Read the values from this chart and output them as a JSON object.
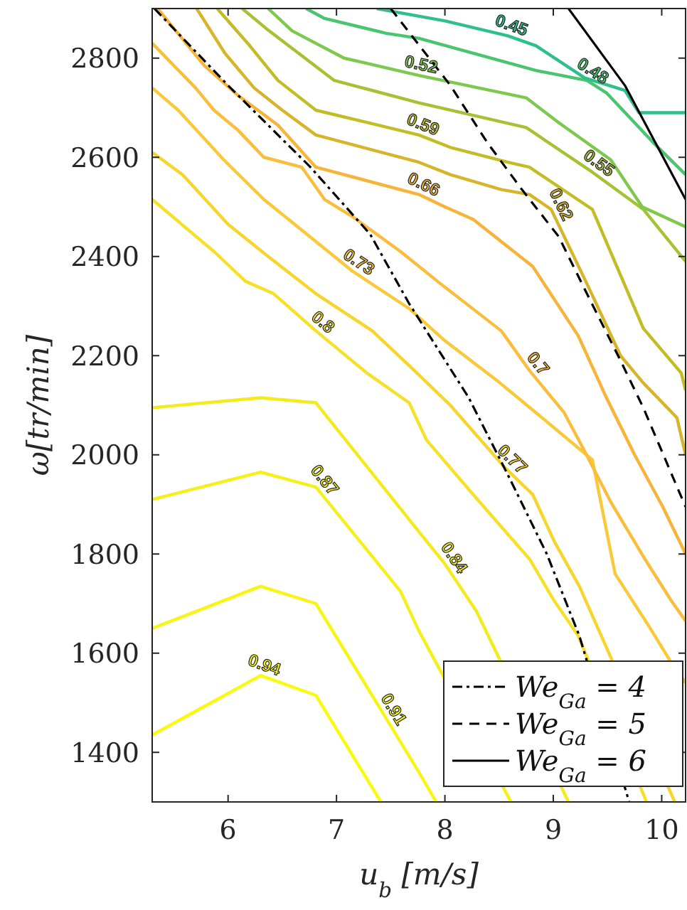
{
  "chart_data": {
    "type": "line",
    "xlabel": "u$_{b}$[m/s]",
    "ylabel": "ω[tr/min]",
    "xlim": [
      5.3,
      10.22
    ],
    "ylim": [
      1300,
      2900
    ],
    "xticks": [
      6,
      7,
      8,
      9,
      10
    ],
    "yticks": [
      1400,
      1600,
      1800,
      2000,
      2200,
      2400,
      2600,
      2800
    ],
    "grid": false,
    "legend": "bottom right",
    "series": [
      {
        "name": "0.94",
        "color": "#f9fb0e",
        "x": [
          5.3,
          6.3,
          6.81,
          7.41
        ],
        "values": [
          1435,
          1555,
          1515,
          1300
        ]
      },
      {
        "name": "0.91",
        "color": "#f8f515",
        "x": [
          5.3,
          6.3,
          6.81,
          7.44,
          7.76,
          7.92
        ],
        "values": [
          1650,
          1735,
          1700,
          1475,
          1360,
          1300
        ]
      },
      {
        "name": "0.87",
        "color": "#f5f01a",
        "x": [
          5.3,
          6.3,
          6.81,
          7.59,
          7.76,
          8.61
        ],
        "values": [
          1910,
          1965,
          1935,
          1725,
          1645,
          1300
        ]
      },
      {
        "name": "0.84",
        "color": "#f4ea1d",
        "x": [
          5.3,
          6.3,
          6.81,
          7.76,
          8.0,
          8.29,
          9.14
        ],
        "values": [
          2095,
          2115,
          2105,
          1845,
          1780,
          1685,
          1300
        ]
      },
      {
        "name": "0.8",
        "color": "#f6e128",
        "x": [
          5.3,
          5.87,
          6.16,
          6.42,
          6.81,
          7.28,
          7.67,
          7.83,
          8.26,
          8.78,
          9.01,
          9.23,
          9.86
        ],
        "values": [
          2515,
          2410,
          2350,
          2325,
          2250,
          2165,
          2105,
          2030,
          1920,
          1790,
          1705,
          1635,
          1300
        ]
      },
      {
        "name": "0.77",
        "color": "#f7d52c",
        "x": [
          5.3,
          5.58,
          6.0,
          6.37,
          6.81,
          7.33,
          7.67,
          8.05,
          8.55,
          8.81,
          9.01,
          9.24,
          10.12
        ],
        "values": [
          2610,
          2565,
          2465,
          2400,
          2325,
          2250,
          2180,
          2100,
          1975,
          1920,
          1825,
          1735,
          1300
        ]
      },
      {
        "name": "0.73",
        "color": "#fac93a",
        "x": [
          5.3,
          5.54,
          5.96,
          6.33,
          6.81,
          7.15,
          7.67,
          8.0,
          8.48,
          8.84,
          9.36,
          9.57,
          9.88,
          10.09,
          10.22
        ],
        "values": [
          2740,
          2695,
          2595,
          2515,
          2430,
          2370,
          2295,
          2230,
          2150,
          2085,
          1990,
          1760,
          1655,
          1580,
          1540
        ]
      },
      {
        "name": "0.7",
        "color": "#fbbd3c",
        "x": [
          5.3,
          5.7,
          5.87,
          6.09,
          6.33,
          6.68,
          6.89,
          7.15,
          7.59,
          7.96,
          8.52,
          8.78,
          9.1,
          9.27,
          9.53,
          9.83,
          10.09,
          10.22
        ],
        "values": [
          2830,
          2740,
          2695,
          2655,
          2600,
          2580,
          2515,
          2480,
          2410,
          2345,
          2250,
          2170,
          2085,
          2015,
          1905,
          1795,
          1705,
          1665
        ]
      },
      {
        "name": "0.66",
        "color": "#f8b33a",
        "x": [
          5.35,
          5.78,
          6.09,
          6.46,
          6.81,
          7.76,
          8.0,
          8.26,
          8.81,
          9.23,
          9.49,
          9.75,
          10.01,
          10.22
        ],
        "values": [
          2900,
          2785,
          2725,
          2665,
          2580,
          2525,
          2500,
          2475,
          2380,
          2240,
          2115,
          2000,
          1895,
          1800
        ]
      },
      {
        "name": "0.62",
        "color": "#d6b52a",
        "x": [
          5.71,
          5.97,
          6.24,
          6.5,
          6.81,
          7.76,
          8.05,
          8.52,
          8.78,
          8.98,
          9.31,
          9.62,
          9.83,
          10.14,
          10.22
        ],
        "values": [
          2900,
          2810,
          2740,
          2695,
          2645,
          2590,
          2565,
          2535,
          2525,
          2495,
          2345,
          2200,
          2145,
          2075,
          2000
        ]
      },
      {
        "name": "0.59",
        "color": "#c2bd27",
        "x": [
          5.9,
          6.2,
          6.46,
          6.81,
          7.76,
          8.05,
          8.58,
          8.78,
          9.36,
          9.83,
          10.18,
          10.22
        ],
        "values": [
          2900,
          2825,
          2755,
          2695,
          2645,
          2620,
          2590,
          2580,
          2495,
          2255,
          2165,
          2130
        ]
      },
      {
        "name": "0.55",
        "color": "#a4c234",
        "x": [
          6.13,
          6.35,
          6.98,
          7.76,
          8.75,
          9.36,
          9.83,
          10.22
        ],
        "values": [
          2900,
          2860,
          2755,
          2710,
          2660,
          2570,
          2495,
          2390
        ]
      },
      {
        "name": "0.52",
        "color": "#7fc84e",
        "x": [
          6.37,
          6.59,
          7.07,
          7.76,
          8.75,
          9.05,
          9.53,
          9.82,
          10.22
        ],
        "values": [
          2900,
          2855,
          2800,
          2765,
          2720,
          2670,
          2595,
          2500,
          2460
        ]
      },
      {
        "name": "0.48",
        "color": "#4ac56f",
        "x": [
          6.72,
          6.89,
          7.46,
          7.76,
          8.84,
          9.31,
          9.49,
          9.92,
          10.22
        ],
        "values": [
          2900,
          2880,
          2850,
          2840,
          2775,
          2755,
          2730,
          2630,
          2565
        ]
      },
      {
        "name": "0.45",
        "color": "#2fbf8c",
        "x": [
          7.37,
          8.0,
          8.58,
          8.84,
          9.29,
          9.66,
          9.79,
          10.22
        ],
        "values": [
          2900,
          2875,
          2845,
          2825,
          2760,
          2735,
          2690,
          2690
        ]
      },
      {
        "name": "We$_{Ga}$ = 4",
        "color": "#000000",
        "line_style": "dashdot",
        "x": [
          5.32,
          6.0,
          6.76,
          7.31,
          7.67,
          8.22,
          8.58,
          8.94,
          9.24,
          9.7
        ],
        "values": [
          2900,
          2745,
          2580,
          2445,
          2305,
          2115,
          1960,
          1800,
          1635,
          1300
        ]
      },
      {
        "name": "We$_{Ga}$ = 5",
        "color": "#000000",
        "line_style": "dashed",
        "x": [
          7.5,
          8.05,
          8.39,
          8.71,
          9.05,
          9.31,
          9.62,
          9.83,
          10.22
        ],
        "values": [
          2900,
          2745,
          2630,
          2535,
          2440,
          2325,
          2190,
          2095,
          1895
        ]
      },
      {
        "name": "We$_{Ga}$ = 6",
        "color": "#000000",
        "line_style": "solid",
        "x": [
          9.14,
          9.66,
          10.22
        ],
        "values": [
          2900,
          2745,
          2515
        ]
      }
    ]
  }
}
